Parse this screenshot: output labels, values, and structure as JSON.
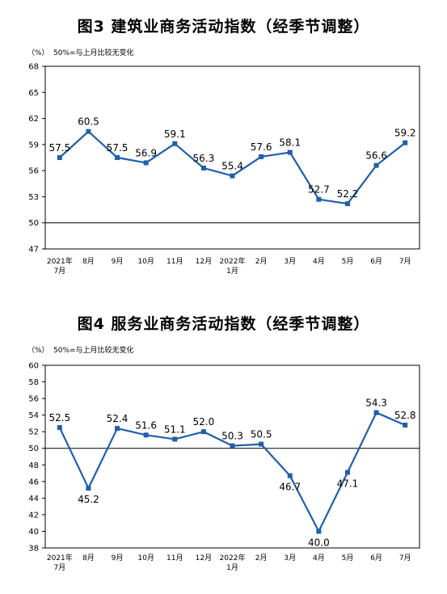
{
  "chart_data": [
    {
      "type": "line",
      "title": "图3  建筑业商务活动指数（经季节调整）",
      "unit_label": "（%）",
      "reference_note": "50%=与上月比较无变化",
      "categories": [
        "2021年\n7月",
        "8月",
        "9月",
        "10月",
        "11月",
        "12月",
        "2022年\n1月",
        "2月",
        "3月",
        "4月",
        "5月",
        "6月",
        "7月"
      ],
      "values": [
        57.5,
        60.5,
        57.5,
        56.9,
        59.1,
        56.3,
        55.4,
        57.6,
        58.1,
        52.7,
        52.2,
        56.6,
        59.2
      ],
      "ylim": [
        47,
        68
      ],
      "yticks": [
        47,
        50,
        53,
        56,
        59,
        62,
        65,
        68
      ],
      "reference_line": 50,
      "label_position": [
        "above",
        "above",
        "above",
        "above",
        "above",
        "above",
        "above",
        "above",
        "above",
        "above",
        "above",
        "above",
        "above"
      ],
      "color": "#1f5faa",
      "grid": false
    },
    {
      "type": "line",
      "title": "图4  服务业商务活动指数（经季节调整）",
      "unit_label": "（%）",
      "reference_note": "50%=与上月比较无变化",
      "categories": [
        "2021年\n7月",
        "8月",
        "9月",
        "10月",
        "11月",
        "12月",
        "2022年\n1月",
        "2月",
        "3月",
        "4月",
        "5月",
        "6月",
        "7月"
      ],
      "values": [
        52.5,
        45.2,
        52.4,
        51.6,
        51.1,
        52.0,
        50.3,
        50.5,
        46.7,
        40.0,
        47.1,
        54.3,
        52.8
      ],
      "ylim": [
        38,
        60
      ],
      "yticks": [
        38,
        40,
        42,
        44,
        46,
        48,
        50,
        52,
        54,
        56,
        58,
        60
      ],
      "reference_line": 50,
      "label_position": [
        "above",
        "below",
        "above",
        "above",
        "above",
        "above",
        "above",
        "above",
        "below",
        "below",
        "below",
        "above",
        "above"
      ],
      "color": "#1f5faa",
      "grid": false
    }
  ]
}
